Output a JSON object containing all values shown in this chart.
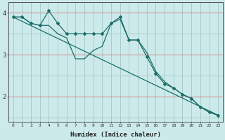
{
  "xlabel": "Humidex (Indice chaleur)",
  "background_color": "#cdeaea",
  "grid_color": "#a0c8c8",
  "red_line_color": "#cc8888",
  "line_color": "#1a6e6a",
  "x": [
    0,
    1,
    2,
    3,
    4,
    5,
    6,
    7,
    8,
    9,
    10,
    11,
    12,
    13,
    14,
    15,
    16,
    17,
    18,
    19,
    20,
    21,
    22,
    23
  ],
  "line_wavy": [
    3.9,
    3.9,
    3.75,
    3.7,
    4.05,
    3.75,
    3.5,
    3.5,
    3.5,
    3.5,
    3.5,
    3.75,
    3.9,
    3.35,
    3.35,
    2.95,
    2.55,
    2.3,
    2.2,
    2.05,
    1.95,
    1.75,
    1.62,
    1.55
  ],
  "line_smooth": [
    3.9,
    3.9,
    3.75,
    3.7,
    3.7,
    3.5,
    3.4,
    2.9,
    2.9,
    3.1,
    3.2,
    3.75,
    3.85,
    3.35,
    3.35,
    3.05,
    2.6,
    2.35,
    2.2,
    2.05,
    1.95,
    1.75,
    1.62,
    1.55
  ],
  "ylim": [
    1.4,
    4.25
  ],
  "yticks": [
    2,
    3,
    4
  ],
  "xlim": [
    -0.5,
    23.5
  ],
  "xticks": [
    0,
    1,
    2,
    3,
    4,
    5,
    6,
    7,
    8,
    9,
    10,
    11,
    12,
    13,
    14,
    15,
    16,
    17,
    18,
    19,
    20,
    21,
    22,
    23
  ]
}
